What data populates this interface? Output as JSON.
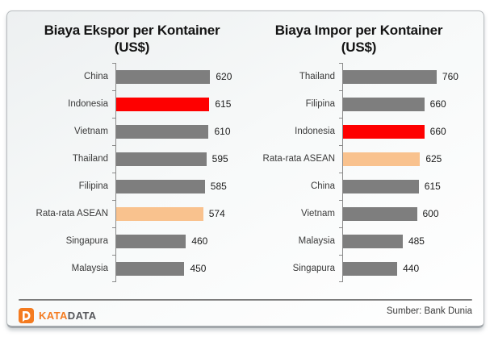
{
  "chart_data": [
    {
      "type": "bar",
      "orientation": "horizontal",
      "title": "Biaya Ekspor per Kontainer",
      "subtitle": "(US$)",
      "value_axis": {
        "min": 0,
        "max": 650
      },
      "grid": false,
      "legend": false,
      "categories": [
        "China",
        "Indonesia",
        "Vietnam",
        "Thailand",
        "Filipina",
        "Rata-rata ASEAN",
        "Singapura",
        "Malaysia"
      ],
      "values": [
        620,
        615,
        610,
        595,
        585,
        574,
        460,
        450
      ],
      "color_roles": [
        "default",
        "highlight",
        "default",
        "default",
        "default",
        "average",
        "default",
        "default"
      ]
    },
    {
      "type": "bar",
      "orientation": "horizontal",
      "title": "Biaya Impor per Kontainer",
      "subtitle": "(US$)",
      "value_axis": {
        "min": 0,
        "max": 800
      },
      "grid": false,
      "legend": false,
      "categories": [
        "Thailand",
        "Filipina",
        "Indonesia",
        "Rata-rata ASEAN",
        "China",
        "Vietnam",
        "Malaysia",
        "Singapura"
      ],
      "values": [
        760,
        660,
        660,
        625,
        615,
        600,
        485,
        440
      ],
      "color_roles": [
        "default",
        "default",
        "highlight",
        "average",
        "default",
        "default",
        "default",
        "default"
      ]
    }
  ],
  "colors": {
    "default": "#7E7E7E",
    "highlight": "#FE0000",
    "average": "#F9C28E",
    "axis": "#8A8A8A",
    "brand_orange": "#F47B20",
    "brand_dark": "#55565A"
  },
  "footer": {
    "source": "Sumber: Bank Dunia",
    "brand": {
      "name_part1": "KATA",
      "name_part2": "DATA"
    }
  }
}
